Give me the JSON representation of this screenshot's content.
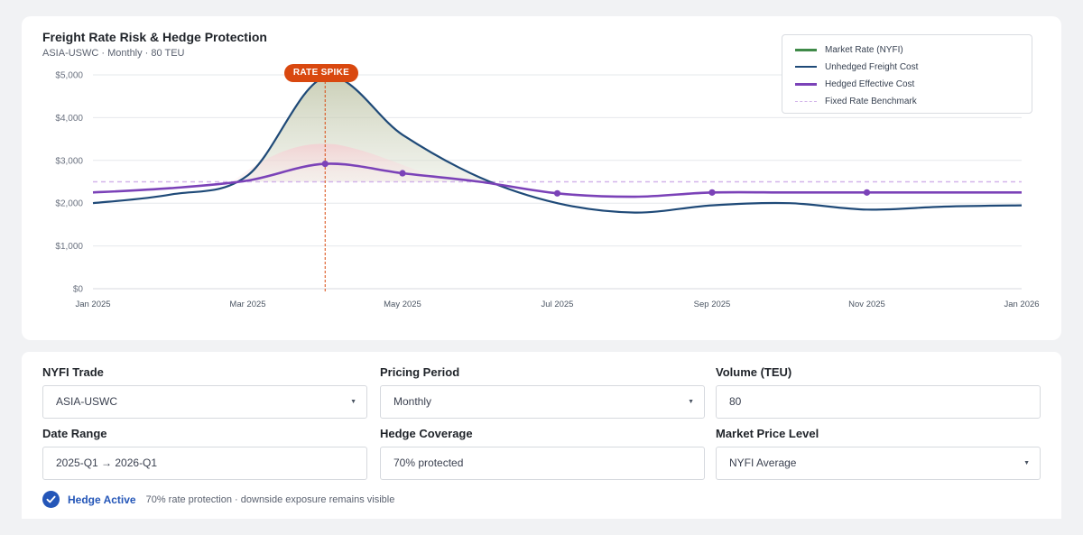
{
  "chart": {
    "title": "Freight Rate Risk & Hedge Protection",
    "subtitle": "ASIA-USWC · Monthly · 80 TEU",
    "annotation": "RATE SPIKE",
    "legend": [
      {
        "label": "Market Rate (NYFI)",
        "color": "#3f8a48",
        "style": "solid"
      },
      {
        "label": "Unhedged Freight Cost",
        "color": "#1f4a78",
        "style": "solid"
      },
      {
        "label": "Hedged Effective Cost",
        "color": "#7b42b8",
        "style": "solid"
      },
      {
        "label": "Fixed Rate Benchmark",
        "color": "#d3b5ea",
        "style": "dashed"
      }
    ]
  },
  "chart_data": {
    "type": "line",
    "title": "Freight Rate Risk & Hedge Protection",
    "x_tick_labels": [
      "Jan 2025",
      "Mar 2025",
      "May 2025",
      "Jul 2025",
      "Sep 2025",
      "Nov 2025",
      "Jan 2026"
    ],
    "y_tick_labels": [
      "$0",
      "$1,000",
      "$2,000",
      "$3,000",
      "$4,000",
      "$5,000"
    ],
    "ylim": [
      0,
      5000
    ],
    "x": [
      "2025-01",
      "2025-02",
      "2025-03",
      "2025-04",
      "2025-05",
      "2025-06",
      "2025-07",
      "2025-08",
      "2025-09",
      "2025-10",
      "2025-11",
      "2025-12",
      "2026-01"
    ],
    "series": [
      {
        "name": "Unhedged Freight Cost",
        "values": [
          2000,
          2200,
          2650,
          4950,
          3600,
          2600,
          2000,
          1780,
          1950,
          2000,
          1850,
          1920,
          1950
        ]
      },
      {
        "name": "Hedged Effective Cost",
        "values": [
          2250,
          2350,
          2530,
          2920,
          2700,
          2500,
          2230,
          2150,
          2250,
          2250,
          2250,
          2250,
          2250
        ]
      },
      {
        "name": "Fixed Rate Benchmark",
        "values": [
          2500,
          2500,
          2500,
          2500,
          2500,
          2500,
          2500,
          2500,
          2500,
          2500,
          2500,
          2500,
          2500
        ]
      }
    ],
    "markers": {
      "series": "Hedged Effective Cost",
      "x": [
        "2025-04",
        "2025-05",
        "2025-07",
        "2025-09",
        "2025-11"
      ]
    },
    "annotation": {
      "text": "RATE SPIKE",
      "x": "2025-04"
    },
    "grid": true,
    "legend_position": "top-right"
  },
  "controls": {
    "nyfi_trade": {
      "label": "NYFI Trade",
      "value": "ASIA-USWC"
    },
    "pricing_period": {
      "label": "Pricing Period",
      "value": "Monthly"
    },
    "volume": {
      "label": "Volume (TEU)",
      "value": "80"
    },
    "date_range": {
      "label": "Date Range",
      "value": "2025-Q1 → 2026-Q1"
    },
    "hedge_coverage": {
      "label": "Hedge Coverage",
      "value": "70% protected"
    },
    "market_price_level": {
      "label": "Market Price Level",
      "value": "NYFI Average"
    }
  },
  "status": {
    "label": "Hedge Active",
    "note": "70% rate protection · downside exposure remains visible",
    "color": "#2456b8"
  }
}
